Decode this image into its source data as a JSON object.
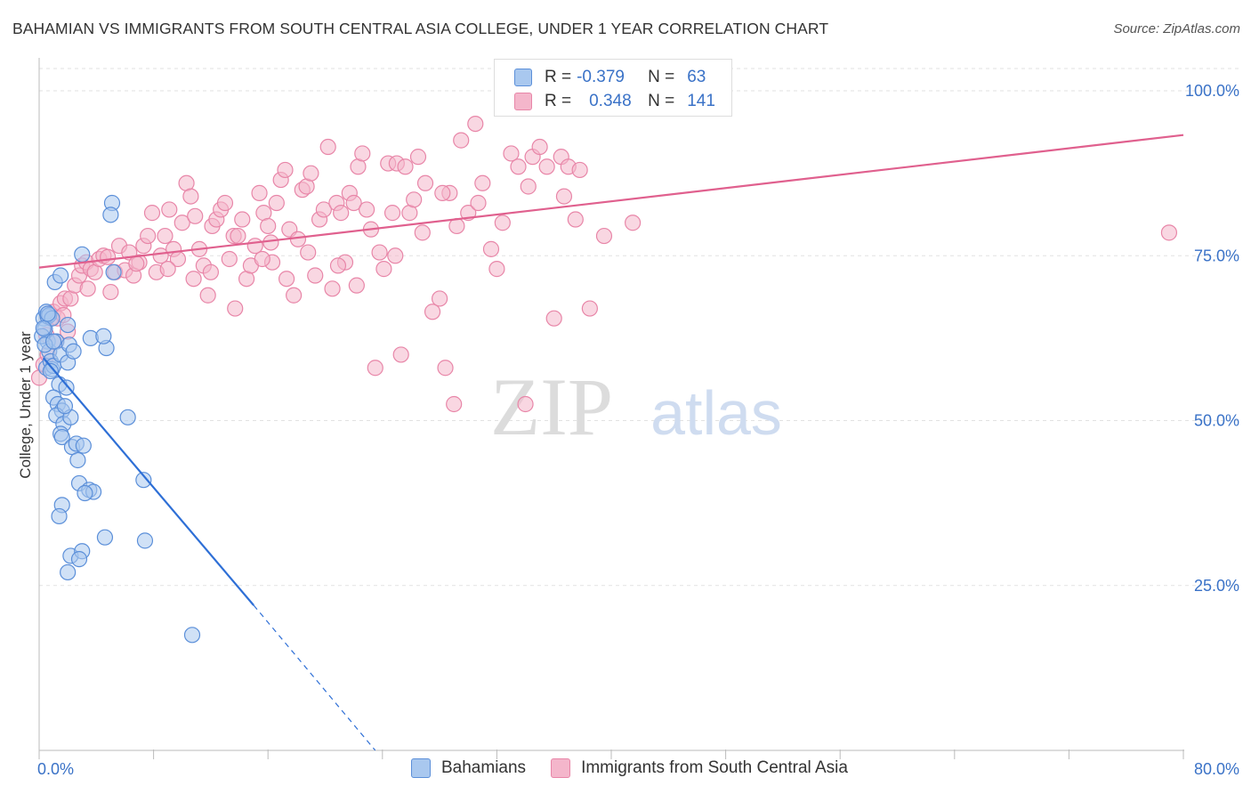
{
  "header": {
    "title": "BAHAMIAN VS IMMIGRANTS FROM SOUTH CENTRAL ASIA COLLEGE, UNDER 1 YEAR CORRELATION CHART",
    "source": "Source: ZipAtlas.com"
  },
  "watermark": {
    "zip": "ZIP",
    "atlas": "atlas"
  },
  "legend": {
    "r_label": "R =",
    "n_label": "N =",
    "rows": [
      {
        "r": "-0.379",
        "n": "63"
      },
      {
        "r": "0.348",
        "n": "141"
      }
    ]
  },
  "colors": {
    "blue_fill": "#a9c8ef",
    "blue_stroke": "#5b8fd9",
    "blue_line": "#2e6fd6",
    "pink_fill": "#f4b6cb",
    "pink_stroke": "#e886a8",
    "pink_line": "#e0608e"
  },
  "chart_data": {
    "type": "scatter",
    "title": "BAHAMIAN VS IMMIGRANTS FROM SOUTH CENTRAL ASIA COLLEGE, UNDER 1 YEAR CORRELATION CHART",
    "xlabel": "",
    "ylabel": "College, Under 1 year",
    "xlim": [
      0,
      80
    ],
    "ylim": [
      0,
      105
    ],
    "x_tick_labels": [
      "0.0%",
      "80.0%"
    ],
    "y_ticks": [
      25,
      50,
      75,
      100
    ],
    "y_tick_labels": [
      "25.0%",
      "50.0%",
      "75.0%",
      "100.0%"
    ],
    "grid": true,
    "legend_position": "bottom-center",
    "series": [
      {
        "name": "Bahamians",
        "color": "#a9c8ef",
        "r": -0.379,
        "n": 63,
        "trend": {
          "x": [
            0.3,
            15.0
          ],
          "y": [
            59.5,
            22.0
          ],
          "dashed_to": [
            23.5,
            0
          ]
        },
        "points": [
          [
            0.3,
            65.5
          ],
          [
            0.4,
            63.9
          ],
          [
            0.5,
            66.5
          ],
          [
            0.6,
            62.0
          ],
          [
            0.7,
            60.5
          ],
          [
            0.5,
            58.0
          ],
          [
            0.8,
            59.0
          ],
          [
            0.9,
            57.8
          ],
          [
            1.0,
            58.3
          ],
          [
            0.6,
            65.8
          ],
          [
            0.7,
            66.0
          ],
          [
            0.9,
            65.5
          ],
          [
            1.1,
            71.0
          ],
          [
            1.5,
            72.0
          ],
          [
            2.0,
            64.5
          ],
          [
            1.2,
            62.0
          ],
          [
            1.5,
            60.0
          ],
          [
            2.1,
            61.5
          ],
          [
            2.0,
            58.8
          ],
          [
            1.4,
            55.5
          ],
          [
            1.9,
            55.0
          ],
          [
            1.0,
            53.5
          ],
          [
            1.3,
            52.5
          ],
          [
            1.6,
            51.5
          ],
          [
            1.2,
            50.8
          ],
          [
            1.7,
            49.5
          ],
          [
            2.2,
            50.5
          ],
          [
            1.5,
            48.0
          ],
          [
            1.6,
            47.5
          ],
          [
            2.3,
            46.0
          ],
          [
            2.6,
            46.5
          ],
          [
            3.1,
            46.2
          ],
          [
            2.7,
            44.0
          ],
          [
            2.8,
            40.5
          ],
          [
            3.5,
            39.5
          ],
          [
            3.8,
            39.2
          ],
          [
            3.2,
            39.0
          ],
          [
            1.6,
            37.2
          ],
          [
            1.4,
            35.5
          ],
          [
            2.2,
            29.5
          ],
          [
            3.0,
            30.2
          ],
          [
            2.8,
            29.0
          ],
          [
            2.0,
            27.0
          ],
          [
            4.6,
            32.3
          ],
          [
            7.4,
            31.8
          ],
          [
            7.3,
            41.0
          ],
          [
            6.2,
            50.5
          ],
          [
            3.6,
            62.5
          ],
          [
            4.7,
            61.0
          ],
          [
            4.5,
            62.8
          ],
          [
            3.0,
            75.2
          ],
          [
            5.2,
            72.5
          ],
          [
            5.1,
            83.0
          ],
          [
            5.0,
            81.2
          ],
          [
            10.7,
            17.5
          ],
          [
            0.2,
            62.8
          ],
          [
            0.4,
            61.5
          ],
          [
            0.8,
            57.5
          ],
          [
            1.8,
            52.2
          ],
          [
            0.3,
            64.0
          ],
          [
            0.6,
            66.2
          ],
          [
            1.0,
            62.0
          ],
          [
            2.4,
            60.5
          ]
        ]
      },
      {
        "name": "Immigrants from South Central Asia",
        "color": "#f4b6cb",
        "r": 0.348,
        "n": 141,
        "trend": {
          "x": [
            0.0,
            80.0
          ],
          "y": [
            73.2,
            93.3
          ]
        },
        "points": [
          [
            0.0,
            56.5
          ],
          [
            0.3,
            58.5
          ],
          [
            0.5,
            63.0
          ],
          [
            0.8,
            65.5
          ],
          [
            1.0,
            66.5
          ],
          [
            1.3,
            65.5
          ],
          [
            1.5,
            67.8
          ],
          [
            1.8,
            68.5
          ],
          [
            2.2,
            68.5
          ],
          [
            1.2,
            62.0
          ],
          [
            2.5,
            70.5
          ],
          [
            2.8,
            72.0
          ],
          [
            3.0,
            73.5
          ],
          [
            3.3,
            74.0
          ],
          [
            3.6,
            73.0
          ],
          [
            3.9,
            72.5
          ],
          [
            4.2,
            74.5
          ],
          [
            4.5,
            75.0
          ],
          [
            5.0,
            69.5
          ],
          [
            5.3,
            72.5
          ],
          [
            5.6,
            76.5
          ],
          [
            6.0,
            72.8
          ],
          [
            6.3,
            75.5
          ],
          [
            6.6,
            72.0
          ],
          [
            7.0,
            74.0
          ],
          [
            7.3,
            76.5
          ],
          [
            7.6,
            78.0
          ],
          [
            7.9,
            81.5
          ],
          [
            8.2,
            72.5
          ],
          [
            8.5,
            75.0
          ],
          [
            8.8,
            78.0
          ],
          [
            9.1,
            82.0
          ],
          [
            9.4,
            76.0
          ],
          [
            9.7,
            74.5
          ],
          [
            10.0,
            80.0
          ],
          [
            10.3,
            86.0
          ],
          [
            10.6,
            84.0
          ],
          [
            10.9,
            81.0
          ],
          [
            11.2,
            76.0
          ],
          [
            11.5,
            73.5
          ],
          [
            11.8,
            69.0
          ],
          [
            12.1,
            79.5
          ],
          [
            12.4,
            80.5
          ],
          [
            12.7,
            82.0
          ],
          [
            13.0,
            83.0
          ],
          [
            13.3,
            74.5
          ],
          [
            13.6,
            78.0
          ],
          [
            13.9,
            78.0
          ],
          [
            14.2,
            80.5
          ],
          [
            14.5,
            71.5
          ],
          [
            14.8,
            73.5
          ],
          [
            15.1,
            76.5
          ],
          [
            15.4,
            84.5
          ],
          [
            15.7,
            81.5
          ],
          [
            16.0,
            79.5
          ],
          [
            16.3,
            74.0
          ],
          [
            16.6,
            83.0
          ],
          [
            16.9,
            86.5
          ],
          [
            17.2,
            88.0
          ],
          [
            17.5,
            79.0
          ],
          [
            17.8,
            69.0
          ],
          [
            18.1,
            77.5
          ],
          [
            18.4,
            85.0
          ],
          [
            18.7,
            85.5
          ],
          [
            19.0,
            87.5
          ],
          [
            19.3,
            72.0
          ],
          [
            19.6,
            80.5
          ],
          [
            19.9,
            82.0
          ],
          [
            20.2,
            91.5
          ],
          [
            20.5,
            70.0
          ],
          [
            20.8,
            83.0
          ],
          [
            21.1,
            81.5
          ],
          [
            21.4,
            74.0
          ],
          [
            21.7,
            84.5
          ],
          [
            22.0,
            83.0
          ],
          [
            22.3,
            88.5
          ],
          [
            22.6,
            90.5
          ],
          [
            22.9,
            82.0
          ],
          [
            23.2,
            79.0
          ],
          [
            23.5,
            58.0
          ],
          [
            23.8,
            75.5
          ],
          [
            24.1,
            73.0
          ],
          [
            24.4,
            89.0
          ],
          [
            24.7,
            81.5
          ],
          [
            25.0,
            89.0
          ],
          [
            25.3,
            60.0
          ],
          [
            25.6,
            88.5
          ],
          [
            25.9,
            81.5
          ],
          [
            26.2,
            83.5
          ],
          [
            26.5,
            90.0
          ],
          [
            27.0,
            86.0
          ],
          [
            27.5,
            66.5
          ],
          [
            28.0,
            68.5
          ],
          [
            28.4,
            58.0
          ],
          [
            28.7,
            84.5
          ],
          [
            29.0,
            52.5
          ],
          [
            29.5,
            92.5
          ],
          [
            30.0,
            81.5
          ],
          [
            30.5,
            95.0
          ],
          [
            31.0,
            86.0
          ],
          [
            32.0,
            73.0
          ],
          [
            33.0,
            90.5
          ],
          [
            33.5,
            88.5
          ],
          [
            34.0,
            52.5
          ],
          [
            34.5,
            90.0
          ],
          [
            35.0,
            91.5
          ],
          [
            35.5,
            88.5
          ],
          [
            36.0,
            65.5
          ],
          [
            36.5,
            90.0
          ],
          [
            37.0,
            88.5
          ],
          [
            37.5,
            80.5
          ],
          [
            37.8,
            88.0
          ],
          [
            38.5,
            67.0
          ],
          [
            39.5,
            78.0
          ],
          [
            41.5,
            80.0
          ],
          [
            79.0,
            78.5
          ],
          [
            0.6,
            60.0
          ],
          [
            1.7,
            66.0
          ],
          [
            2.0,
            63.5
          ],
          [
            3.4,
            70.0
          ],
          [
            4.8,
            74.8
          ],
          [
            6.8,
            73.8
          ],
          [
            9.0,
            73.0
          ],
          [
            10.8,
            71.5
          ],
          [
            12.0,
            72.5
          ],
          [
            13.7,
            67.0
          ],
          [
            15.6,
            74.5
          ],
          [
            16.2,
            77.0
          ],
          [
            17.3,
            71.5
          ],
          [
            18.8,
            75.5
          ],
          [
            20.9,
            73.5
          ],
          [
            22.2,
            70.5
          ],
          [
            24.9,
            75.0
          ],
          [
            26.8,
            78.5
          ],
          [
            28.2,
            84.5
          ],
          [
            29.2,
            79.5
          ],
          [
            30.7,
            83.0
          ],
          [
            31.6,
            76.0
          ],
          [
            32.4,
            80.0
          ],
          [
            34.2,
            85.5
          ],
          [
            36.7,
            84.0
          ]
        ]
      }
    ]
  },
  "bottom_legend": {
    "items": [
      "Bahamians",
      "Immigrants from South Central Asia"
    ]
  }
}
